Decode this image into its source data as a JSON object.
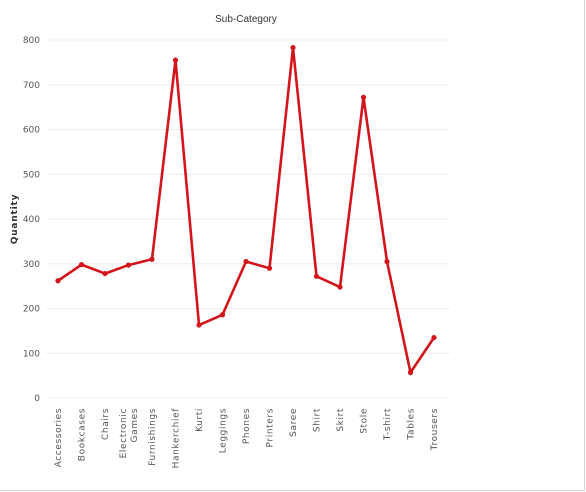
{
  "chart_data": {
    "type": "line",
    "title": "Sub-Category",
    "xlabel": "",
    "ylabel": "Quantity",
    "ylim": [
      0,
      800
    ],
    "yticks": [
      0,
      100,
      200,
      300,
      400,
      500,
      600,
      700,
      800
    ],
    "grid": true,
    "categories": [
      "Accessories",
      "Bookcases",
      "Chairs",
      "Electronic Games",
      "Furnishings",
      "Hankerchief",
      "Kurti",
      "Leggings",
      "Phones",
      "Printers",
      "Saree",
      "Shirt",
      "Skirt",
      "Stole",
      "T-shirt",
      "Tables",
      "Trousers"
    ],
    "category_lines": [
      [
        "Accessories"
      ],
      [
        "Bookcases"
      ],
      [
        "Chairs"
      ],
      [
        "Electronic",
        "Games"
      ],
      [
        "Furnishings"
      ],
      [
        "Hankerchief"
      ],
      [
        "Kurti"
      ],
      [
        "Leggings"
      ],
      [
        "Phones"
      ],
      [
        "Printers"
      ],
      [
        "Saree"
      ],
      [
        "Shirt"
      ],
      [
        "Skirt"
      ],
      [
        "Stole"
      ],
      [
        "T-shirt"
      ],
      [
        "Tables"
      ],
      [
        "Trousers"
      ]
    ],
    "series": [
      {
        "color": "#d3151b",
        "values": [
          262,
          298,
          278,
          297,
          310,
          755,
          163,
          186,
          305,
          290,
          783,
          272,
          248,
          672,
          305,
          57,
          135
        ]
      }
    ]
  }
}
